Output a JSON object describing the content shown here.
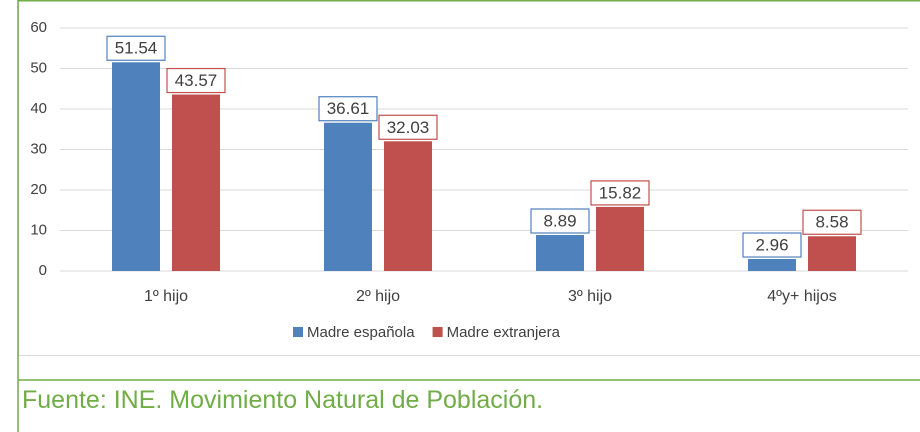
{
  "chart_data": {
    "type": "bar",
    "categories": [
      "1º hijo",
      "2º hijo",
      "3º hijo",
      "4ºy+ hijos"
    ],
    "series": [
      {
        "name": "Madre española",
        "color": "#4f81bd",
        "values": [
          51.54,
          36.61,
          8.89,
          2.96
        ]
      },
      {
        "name": "Madre extranjera",
        "color": "#c0504d",
        "values": [
          43.57,
          32.03,
          15.82,
          8.58
        ]
      }
    ],
    "ylim": [
      0,
      60
    ],
    "yticks": [
      0,
      10,
      20,
      30,
      40,
      50,
      60
    ],
    "grid": true,
    "legend": "bottom",
    "data_labels": true
  },
  "source": "Fuente: INE. Movimiento Natural de Población."
}
